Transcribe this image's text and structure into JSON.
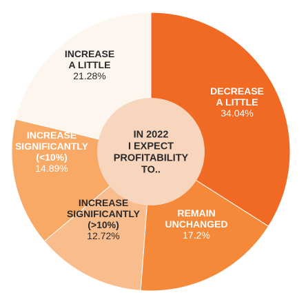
{
  "chart_data": {
    "type": "pie",
    "center_label": [
      "IN 2022",
      "I EXPECT",
      "PROFITABILITY",
      "TO.."
    ],
    "slices": [
      {
        "label": [
          "DECREASE",
          "A LITTLE"
        ],
        "value_text": "34.04%",
        "value": 34.04,
        "color": "#f06a23",
        "text_color": "#ffffff"
      },
      {
        "label": [
          "REMAIN",
          "UNCHANGED"
        ],
        "value_text": "17.2%",
        "value": 17.2,
        "color": "#f5893a",
        "text_color": "#ffffff"
      },
      {
        "label": [
          "INCREASE",
          "SIGNIFICANTLY",
          "(>10%)"
        ],
        "value_text": "12.72%",
        "value": 12.72,
        "color": "#f9bc8d",
        "text_color": "#2a2a2a"
      },
      {
        "label": [
          "INCREASE",
          "SIGNIFICANTLY",
          "(<10%)"
        ],
        "value_text": "14.89%",
        "value": 14.89,
        "color": "#f8a965",
        "text_color": "#ffffff"
      },
      {
        "label": [
          "INCREASE",
          "A LITTLE"
        ],
        "value_text": "21.28%",
        "value": 21.28,
        "color": "#fdf6ef",
        "text_color": "#2a2a2a"
      }
    ],
    "center_color": "#f8d6bd"
  }
}
